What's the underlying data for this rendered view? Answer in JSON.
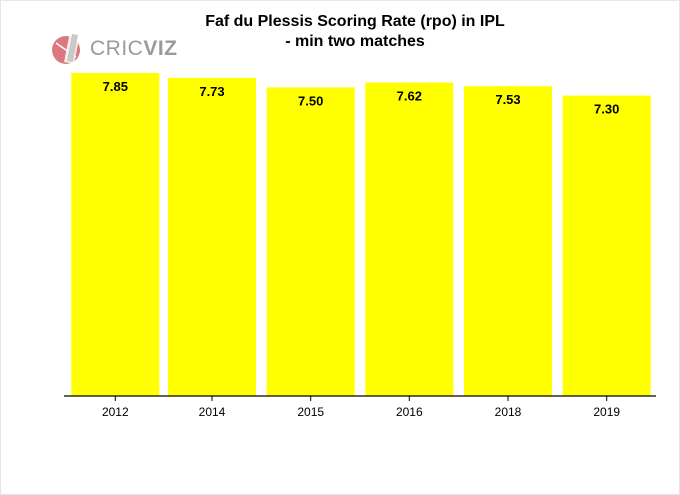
{
  "logo": {
    "text_light": "CRIC",
    "text_bold": "VIZ"
  },
  "chart_data": {
    "type": "bar",
    "title_lines": [
      "Faf du Plessis Scoring Rate (rpo) in IPL",
      "- min two matches"
    ],
    "categories": [
      "2012",
      "2014",
      "2015",
      "2016",
      "2018",
      "2019"
    ],
    "values": [
      7.85,
      7.73,
      7.5,
      7.62,
      7.53,
      7.3
    ],
    "data_labels": [
      "7.85",
      "7.73",
      "7.50",
      "7.62",
      "7.53",
      "7.30"
    ],
    "xlabel": "",
    "ylabel": "",
    "ylim": [
      0,
      7.85
    ],
    "grid": false,
    "colors": {
      "bar": "#ffff00",
      "axis": "#000000"
    }
  }
}
